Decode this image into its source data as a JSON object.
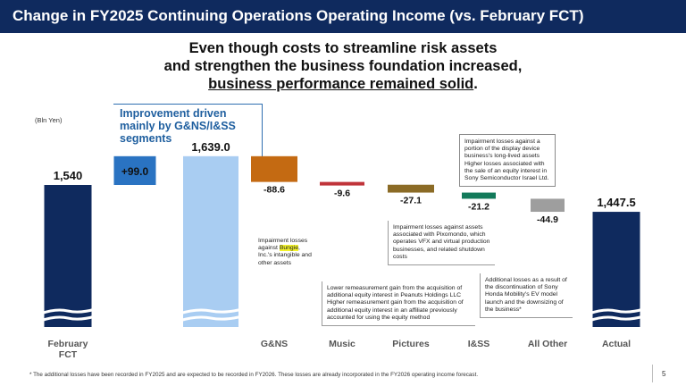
{
  "title": "Change in FY2025 Continuing Operations Operating Income (vs. February FCT)",
  "headline": {
    "line1": "Even though costs to streamline risk assets",
    "line2": "and strengthen the business foundation increased,",
    "line3_underlined": "business performance remained solid",
    "line3_tail": "."
  },
  "unit_label": "(Bln Yen)",
  "improvement_callout": "Improvement driven mainly by G&NS/I&SS segments",
  "chart_data": {
    "type": "bar",
    "subtype": "waterfall",
    "unit": "Bln Yen",
    "y_axis_broken": true,
    "categories": [
      "February\nFCT",
      "",
      "",
      "G&NS",
      "Music",
      "Pictures",
      "I&SS",
      "All Other",
      "Actual"
    ],
    "x_tick_labels": [
      "February",
      "FCT",
      "G&NS",
      "Music",
      "Pictures",
      "I&SS",
      "All Other",
      "Actual"
    ],
    "steps": [
      {
        "label": "February FCT",
        "kind": "total",
        "value": 1540,
        "display": "1,540",
        "color": "#0f2a5e"
      },
      {
        "label": "",
        "kind": "delta",
        "value": 99.0,
        "display": "+99.0",
        "color": "#2a73c2"
      },
      {
        "label": "",
        "kind": "subtotal",
        "value": 1639.0,
        "display": "1,639.0",
        "color": "#a9cdf2"
      },
      {
        "label": "G&NS",
        "kind": "delta",
        "value": -88.6,
        "display": "-88.6",
        "color": "#c46a12"
      },
      {
        "label": "Music",
        "kind": "delta",
        "value": -9.6,
        "display": "-9.6",
        "color": "#c0343a"
      },
      {
        "label": "Pictures",
        "kind": "delta",
        "value": -27.1,
        "display": "-27.1",
        "color": "#8b6b26"
      },
      {
        "label": "I&SS",
        "kind": "delta",
        "value": -21.2,
        "display": "-21.2",
        "color": "#127a5a"
      },
      {
        "label": "All Other",
        "kind": "delta",
        "value": -44.9,
        "display": "-44.9",
        "color": "#9e9e9e"
      },
      {
        "label": "Actual",
        "kind": "total",
        "value": 1447.5,
        "display": "1,447.5",
        "color": "#0f2a5e"
      }
    ],
    "ylim": [
      1400,
      1660
    ]
  },
  "notes": {
    "gns": {
      "pre": "Impairment losses against ",
      "highlight": "Bungie",
      "post": ", Inc.'s intangible and other assets"
    },
    "music": "Lower remeasurement gain from the acquisition of additional equity interest in Peanuts Holdings LLC\nHigher remeasurement gain from the acquisition of additional equity interest in an affiliate previously accounted for using the equity method",
    "pictures": "Impairment losses against assets associated with Pixomondo, which operates VFX and virtual production businesses, and related shutdown costs",
    "iss": "Impairment losses against a portion of the display device business's long-lived assets\nHigher losses associated with the sale of an equity interest in Sony Semiconductor Israel Ltd.",
    "all_other": "Additional losses as a result of the discontinuation of Sony Honda Mobility's EV model launch and the downsizing of the business*"
  },
  "footnote": "*  The additional losses have been recorded in FY2025 and are expected to be recorded in FY2026. These losses are already incorporated in the FY2026 operating income forecast.",
  "page_number": "5",
  "colors": {
    "title_bg": "#0f2a5e",
    "accent_blue": "#1f5f9f"
  }
}
